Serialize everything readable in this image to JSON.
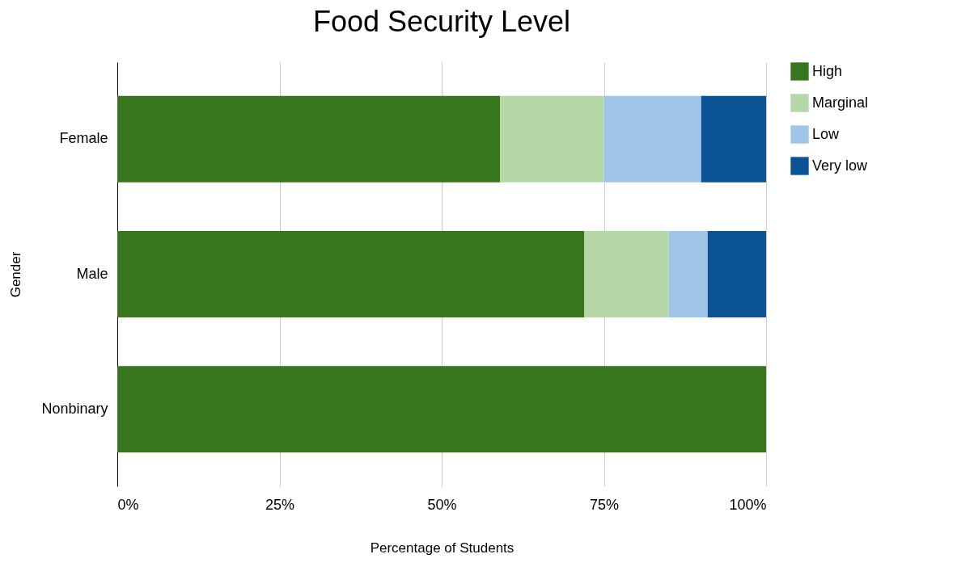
{
  "chart_data": {
    "type": "bar",
    "orientation": "horizontal",
    "stacked": true,
    "title": "Food Security Level",
    "xlabel": "Percentage of Students",
    "ylabel": "Gender",
    "categories": [
      "Female",
      "Male",
      "Nonbinary"
    ],
    "series": [
      {
        "name": "High",
        "color": "#38761d",
        "values": [
          59,
          72,
          100
        ]
      },
      {
        "name": "Marginal",
        "color": "#b6d7a8",
        "values": [
          16,
          13,
          0
        ]
      },
      {
        "name": "Low",
        "color": "#9fc5e8",
        "values": [
          15,
          6,
          0
        ]
      },
      {
        "name": "Very low",
        "color": "#0b5394",
        "values": [
          10,
          9,
          0
        ]
      }
    ],
    "xlim": [
      0,
      100
    ],
    "xticks": [
      {
        "value": 0,
        "label": "0%"
      },
      {
        "value": 25,
        "label": "25%"
      },
      {
        "value": 50,
        "label": "50%"
      },
      {
        "value": 75,
        "label": "75%"
      },
      {
        "value": 100,
        "label": "100%"
      }
    ],
    "grid": "x",
    "legend": "right"
  }
}
